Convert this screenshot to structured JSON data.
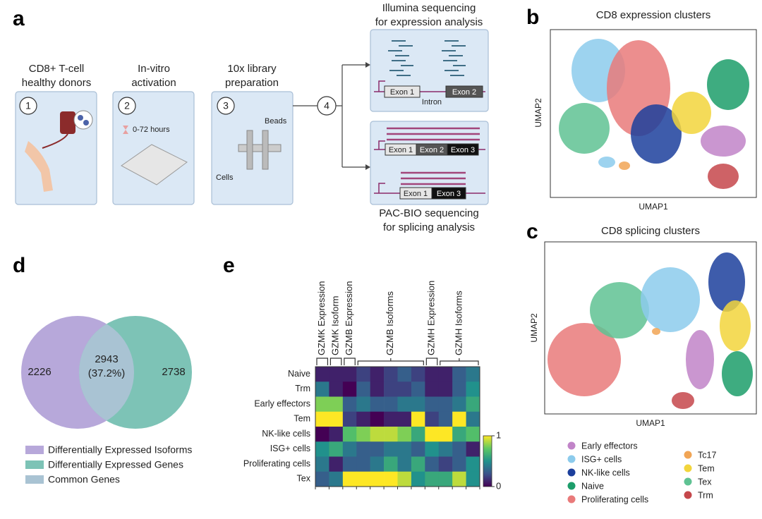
{
  "panels": {
    "a": "a",
    "b": "b",
    "c": "c",
    "d": "d",
    "e": "e"
  },
  "workflow": {
    "steps": [
      {
        "number": "1",
        "lines": [
          "CD8+ T-cell",
          "healthy donors"
        ]
      },
      {
        "number": "2",
        "lines": [
          "In-vitro",
          "activation"
        ],
        "note": "0-72 hours"
      },
      {
        "number": "3",
        "lines": [
          "10x library",
          "preparation"
        ],
        "beads": "Beads",
        "cells": "Cells"
      },
      {
        "number": "4"
      }
    ],
    "illumina": {
      "lines": [
        "Illumina sequencing",
        "for expression analysis"
      ],
      "exon1": "Exon  1",
      "exon2": "Exon  2",
      "intron": "Intron"
    },
    "pacbio": {
      "lines": [
        "PAC-BIO sequencing",
        "for splicing analysis"
      ],
      "iso1": [
        "Exon 1",
        "Exon 2",
        "Exon 3"
      ],
      "iso2": [
        "Exon 1",
        "Exon 3"
      ]
    }
  },
  "umap_expression": {
    "title": "CD8 expression clusters",
    "xlabel": "UMAP1",
    "ylabel": "UMAP2"
  },
  "umap_splicing": {
    "title": "CD8 splicing clusters",
    "xlabel": "UMAP1",
    "ylabel": "UMAP2"
  },
  "clusters": [
    {
      "name": "Early effectors",
      "color": "#c184c8"
    },
    {
      "name": "ISG+ cells",
      "color": "#8ccbec"
    },
    {
      "name": "NK-like cells",
      "color": "#1c3f9c"
    },
    {
      "name": "Naive",
      "color": "#1c9d6a"
    },
    {
      "name": "Proliferating cells",
      "color": "#e97a7a"
    },
    {
      "name": "Tc17",
      "color": "#f1a555"
    },
    {
      "name": "Tem",
      "color": "#f2d53c"
    },
    {
      "name": "Tex",
      "color": "#5fc293"
    },
    {
      "name": "Trm",
      "color": "#c5474b"
    }
  ],
  "venn": {
    "left": 2226,
    "common": 2943,
    "common_label": "(37.2%)",
    "right": 2738,
    "legend": [
      {
        "name": "Differentially Expressed Isoforms",
        "color": "#b7a8da"
      },
      {
        "name": "Differentially Expressed Genes",
        "color": "#7dc3b6"
      },
      {
        "name": "Common Genes",
        "color": "#a9c3d3"
      }
    ]
  },
  "heatmap": {
    "column_groups": [
      {
        "label": "GZMK Expression",
        "span": 1
      },
      {
        "label": "GZMK Isoform",
        "span": 1
      },
      {
        "label": "GZMB Expression",
        "span": 1
      },
      {
        "label": "GZMB Isoforms",
        "span": 5
      },
      {
        "label": "GZMH Expression",
        "span": 1
      },
      {
        "label": "GZMH Isoforms",
        "span": 3
      }
    ],
    "rows": [
      "Naive",
      "Trm",
      "Early effectors",
      "Tem",
      "NK-like cells",
      "ISG+ cells",
      "Proliferating cells",
      "Tex"
    ],
    "values": [
      [
        0.1,
        0.1,
        0.1,
        0.2,
        0.1,
        0.2,
        0.3,
        0.2,
        0.1,
        0.1,
        0.3,
        0.4
      ],
      [
        0.4,
        0.1,
        0.0,
        0.3,
        0.1,
        0.2,
        0.2,
        0.3,
        0.1,
        0.1,
        0.3,
        0.5
      ],
      [
        0.8,
        0.8,
        0.3,
        0.4,
        0.3,
        0.3,
        0.4,
        0.4,
        0.3,
        0.3,
        0.4,
        0.6
      ],
      [
        1.0,
        1.0,
        0.2,
        0.1,
        0.0,
        0.1,
        0.1,
        1.0,
        0.2,
        0.3,
        1.0,
        0.4
      ],
      [
        0.0,
        0.1,
        0.7,
        0.8,
        0.9,
        0.9,
        0.8,
        0.6,
        1.0,
        1.0,
        0.6,
        0.7
      ],
      [
        0.5,
        0.6,
        0.4,
        0.3,
        0.3,
        0.4,
        0.4,
        0.3,
        0.5,
        0.4,
        0.3,
        0.1
      ],
      [
        0.4,
        0.1,
        0.3,
        0.3,
        0.4,
        0.6,
        0.4,
        0.6,
        0.3,
        0.2,
        0.3,
        0.5
      ],
      [
        0.3,
        0.4,
        1.0,
        1.0,
        1.0,
        1.0,
        0.9,
        0.5,
        0.6,
        0.6,
        0.9,
        0.5
      ]
    ],
    "colorbar_ticks": [
      1,
      0
    ]
  }
}
